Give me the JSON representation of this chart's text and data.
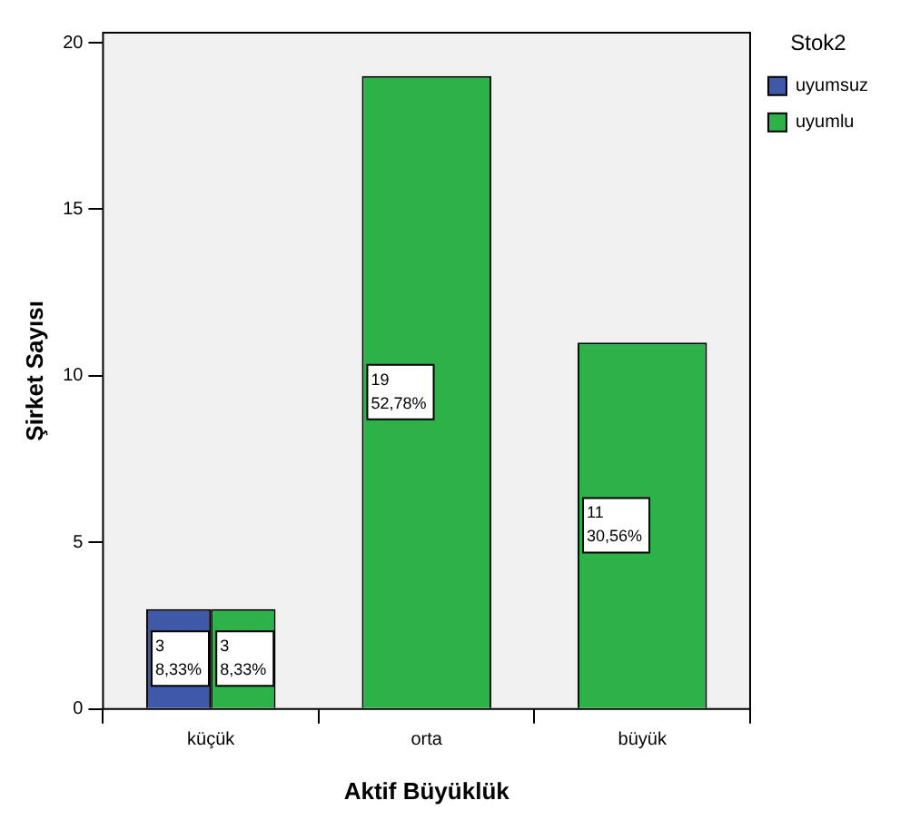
{
  "chart_data": {
    "type": "bar",
    "xlabel": "Aktif Büyüklük",
    "ylabel": "Şirket Sayısı",
    "legend_title": "Stok2",
    "categories": [
      "küçük",
      "orta",
      "büyük"
    ],
    "series": [
      {
        "name": "uyumsuz",
        "color": "#3f58a8",
        "values": [
          3,
          null,
          null
        ],
        "value_labels": [
          "3\n8,33%",
          null,
          null
        ]
      },
      {
        "name": "uyumlu",
        "color": "#2db24a",
        "values": [
          3,
          19,
          11
        ],
        "value_labels": [
          "3\n8,33%",
          "19\n52,78%",
          "11\n30,56%"
        ]
      }
    ],
    "ylim": [
      0,
      20.3
    ],
    "yticks": [
      0,
      5,
      10,
      15,
      20
    ],
    "grid": false,
    "legend": "top right"
  }
}
